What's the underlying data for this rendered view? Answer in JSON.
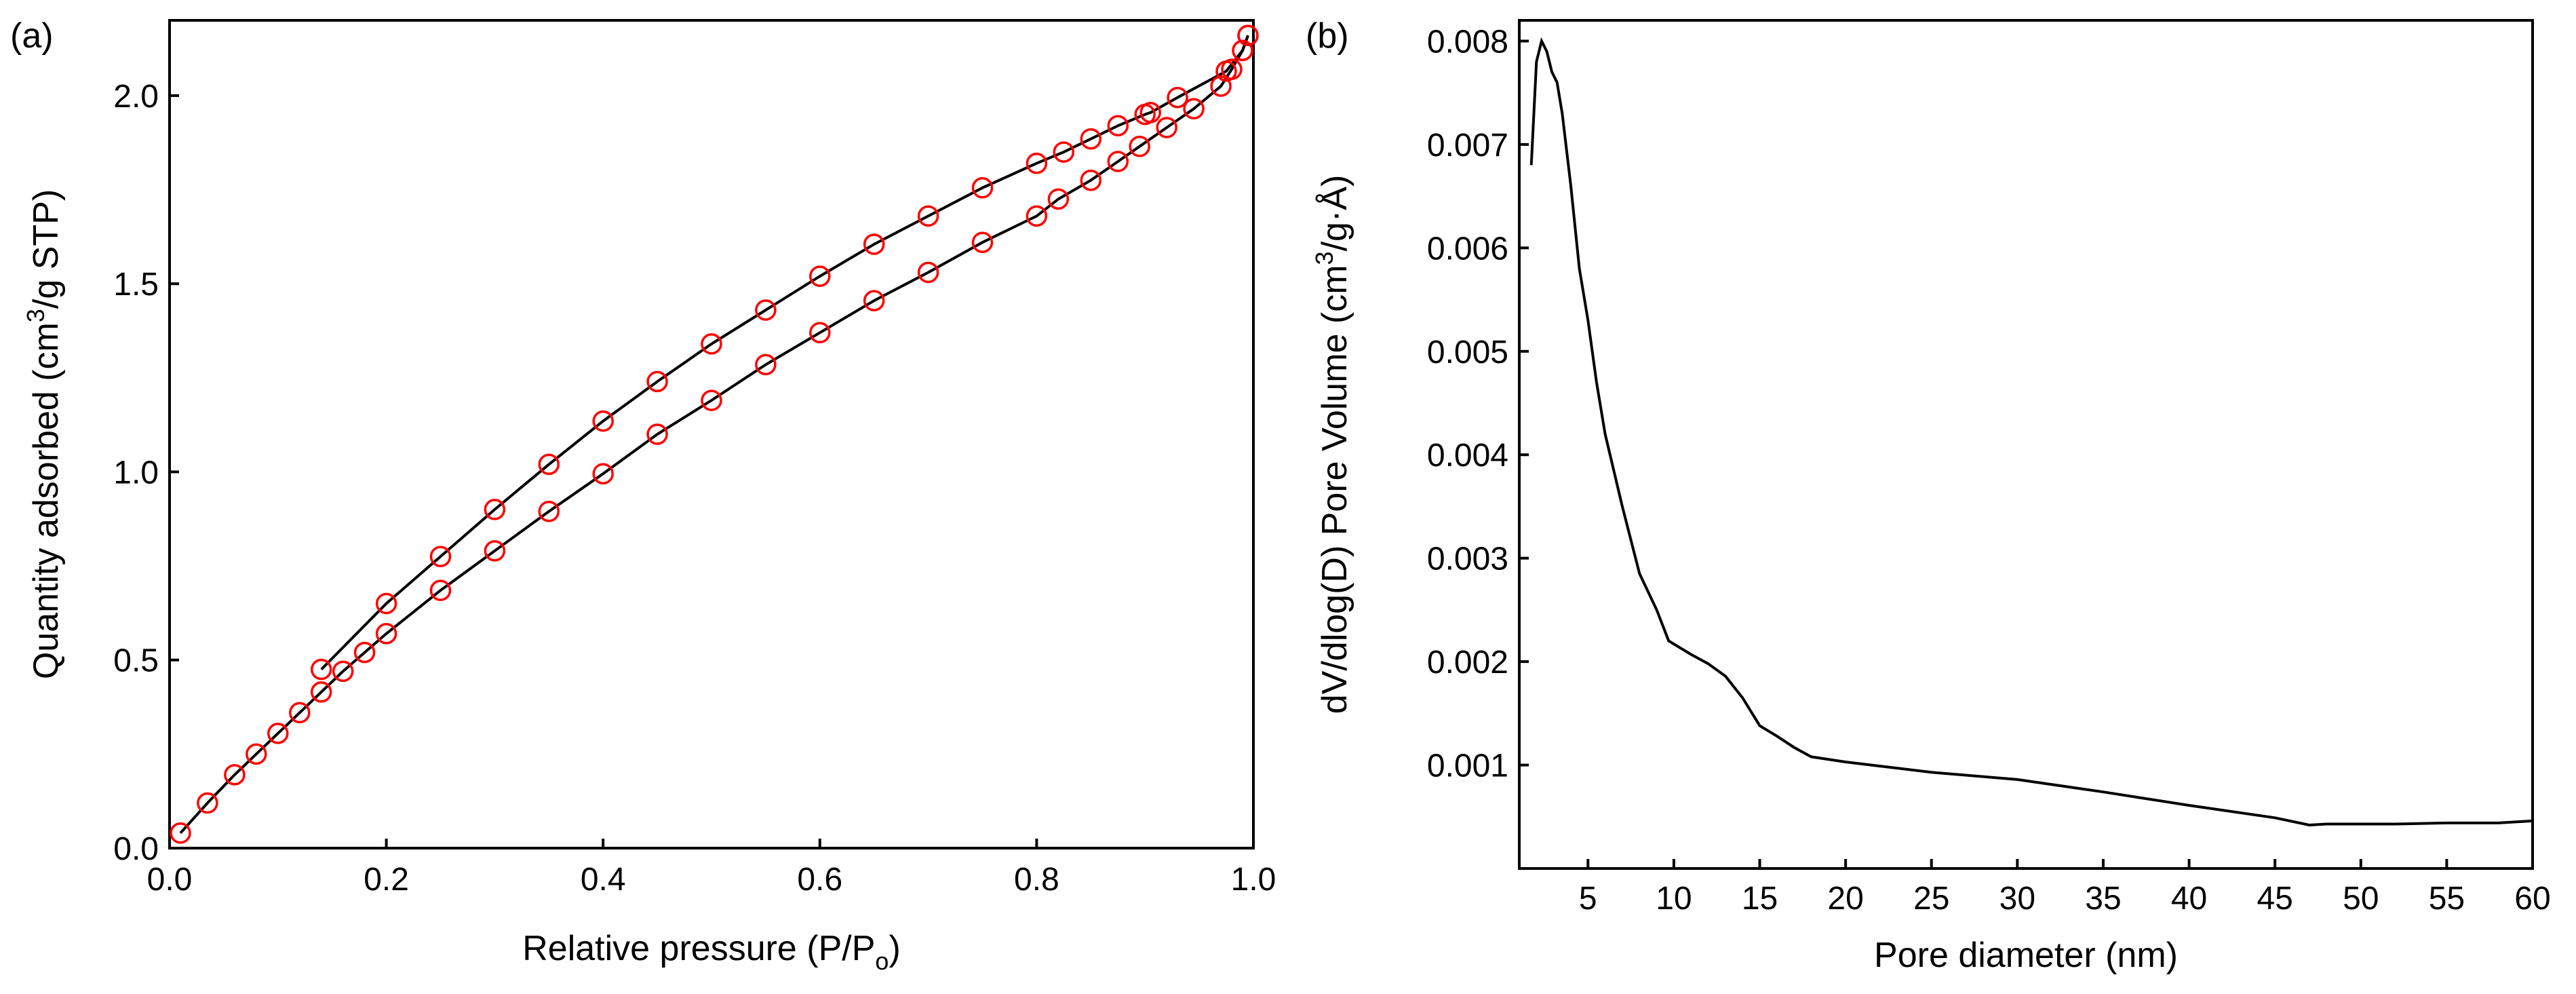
{
  "chart_data": [
    {
      "panel_label": "(a)",
      "type": "scatter",
      "xlabel_main": "Relative pressure (P/P",
      "xlabel_sub": "o",
      "xlabel_end": ")",
      "ylabel_main": "Quantity adsorbed (cm",
      "ylabel_sup": "3",
      "ylabel_end": "/g STP)",
      "xlim": [
        0.0,
        1.0
      ],
      "ylim": [
        0.0,
        2.2
      ],
      "xticks": [
        0.0,
        0.2,
        0.4,
        0.6,
        0.8,
        1.0
      ],
      "xtick_labels": [
        "0.0",
        "0.2",
        "0.4",
        "0.6",
        "0.8",
        "1.0"
      ],
      "yticks": [
        0.0,
        0.5,
        1.0,
        1.5,
        2.0
      ],
      "ytick_labels": [
        "0.0",
        "0.5",
        "1.0",
        "1.5",
        "2.0"
      ],
      "marker_color": "#ff0000",
      "line_color": "#000000",
      "series": [
        {
          "name": "adsorption",
          "points": [
            [
              0.01,
              0.04
            ],
            [
              0.035,
              0.12
            ],
            [
              0.06,
              0.195
            ],
            [
              0.08,
              0.25
            ],
            [
              0.1,
              0.305
            ],
            [
              0.12,
              0.36
            ],
            [
              0.14,
              0.415
            ],
            [
              0.16,
              0.47
            ],
            [
              0.18,
              0.52
            ],
            [
              0.2,
              0.57
            ],
            [
              0.25,
              0.685
            ],
            [
              0.3,
              0.79
            ],
            [
              0.35,
              0.895
            ],
            [
              0.4,
              0.995
            ],
            [
              0.45,
              1.1
            ],
            [
              0.5,
              1.19
            ],
            [
              0.55,
              1.285
            ],
            [
              0.6,
              1.37
            ],
            [
              0.65,
              1.455
            ],
            [
              0.7,
              1.53
            ],
            [
              0.75,
              1.61
            ],
            [
              0.8,
              1.68
            ],
            [
              0.82,
              1.725
            ],
            [
              0.85,
              1.775
            ],
            [
              0.875,
              1.825
            ],
            [
              0.895,
              1.865
            ],
            [
              0.92,
              1.915
            ],
            [
              0.945,
              1.965
            ],
            [
              0.97,
              2.025
            ],
            [
              0.98,
              2.07
            ],
            [
              0.99,
              2.12
            ],
            [
              0.995,
              2.16
            ]
          ]
        },
        {
          "name": "desorption",
          "points": [
            [
              0.995,
              2.16
            ],
            [
              0.99,
              2.12
            ],
            [
              0.975,
              2.065
            ],
            [
              0.93,
              1.995
            ],
            [
              0.905,
              1.955
            ],
            [
              0.9,
              1.95
            ],
            [
              0.875,
              1.92
            ],
            [
              0.85,
              1.885
            ],
            [
              0.825,
              1.85
            ],
            [
              0.8,
              1.82
            ],
            [
              0.75,
              1.755
            ],
            [
              0.7,
              1.68
            ],
            [
              0.65,
              1.605
            ],
            [
              0.6,
              1.52
            ],
            [
              0.55,
              1.43
            ],
            [
              0.5,
              1.34
            ],
            [
              0.45,
              1.24
            ],
            [
              0.4,
              1.135
            ],
            [
              0.35,
              1.02
            ],
            [
              0.3,
              0.9
            ],
            [
              0.25,
              0.775
            ],
            [
              0.2,
              0.65
            ],
            [
              0.14,
              0.475
            ]
          ]
        }
      ]
    },
    {
      "panel_label": "(b)",
      "type": "line",
      "xlabel": "Pore diameter (nm)",
      "ylabel_main": "dV/dlog(D) Pore Volume (cm",
      "ylabel_sup": "3",
      "ylabel_end": "/g·Å)",
      "xlim": [
        1.0,
        60.0
      ],
      "ylim": [
        0.0,
        0.0082
      ],
      "xticks": [
        5,
        10,
        15,
        20,
        25,
        30,
        35,
        40,
        45,
        50,
        55,
        60
      ],
      "xtick_labels": [
        "5",
        "10",
        "15",
        "20",
        "25",
        "30",
        "35",
        "40",
        "45",
        "50",
        "55",
        "60"
      ],
      "yticks": [
        0.001,
        0.002,
        0.003,
        0.004,
        0.005,
        0.006,
        0.007,
        0.008
      ],
      "ytick_labels": [
        "0.001",
        "0.002",
        "0.003",
        "0.004",
        "0.005",
        "0.006",
        "0.007",
        "0.008"
      ],
      "line_color": "#000000",
      "x": [
        1.7,
        2.0,
        2.3,
        2.6,
        2.9,
        3.2,
        3.5,
        4.0,
        4.5,
        5.0,
        5.5,
        6.0,
        7.0,
        8.0,
        9.0,
        9.7,
        11.0,
        12.0,
        13.0,
        14.0,
        15.0,
        16.0,
        17.0,
        18.0,
        20.0,
        22.0,
        25.0,
        30.0,
        35.0,
        40.0,
        45.0,
        47.0,
        48.0,
        50.0,
        52.0,
        55.0,
        58.0,
        60.0
      ],
      "y": [
        0.0068,
        0.0078,
        0.008,
        0.0079,
        0.0077,
        0.0076,
        0.0073,
        0.0066,
        0.0058,
        0.0053,
        0.0047,
        0.0042,
        0.0035,
        0.00285,
        0.0025,
        0.0022,
        0.00207,
        0.00198,
        0.00186,
        0.00165,
        0.00138,
        0.00128,
        0.00117,
        0.00108,
        0.00103,
        0.00099,
        0.00093,
        0.00086,
        0.00074,
        0.00061,
        0.00049,
        0.00042,
        0.00043,
        0.00043,
        0.00043,
        0.00044,
        0.00044,
        0.00046
      ]
    }
  ]
}
